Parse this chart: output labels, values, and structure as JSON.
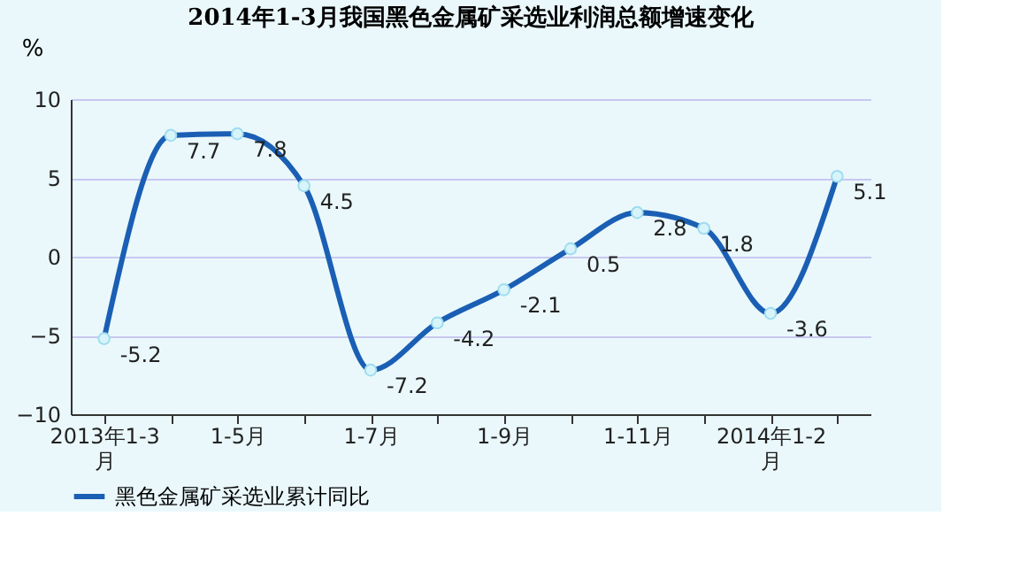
{
  "chart_data": {
    "type": "line",
    "title": "2014年1-3月我国黑色金属矿采选业利润总额增速变化",
    "ylabel": "%",
    "categories": [
      "2013年1-3月",
      null,
      "1-5月",
      null,
      "1-7月",
      null,
      "1-9月",
      null,
      "1-11月",
      null,
      "2014年1-2月",
      null
    ],
    "series": [
      {
        "name": "黑色金属矿采选业累计同比",
        "color": "#1a5fb4",
        "values": [
          -5.2,
          7.7,
          7.8,
          4.5,
          -7.2,
          -4.2,
          -2.1,
          0.5,
          2.8,
          1.8,
          -3.6,
          5.1
        ]
      }
    ],
    "ylim": [
      -10,
      10
    ],
    "yticks": [
      -10,
      -5,
      0,
      5,
      10
    ],
    "grid": "y",
    "legend": "bottom",
    "marker": "circle",
    "data_labels": true
  }
}
